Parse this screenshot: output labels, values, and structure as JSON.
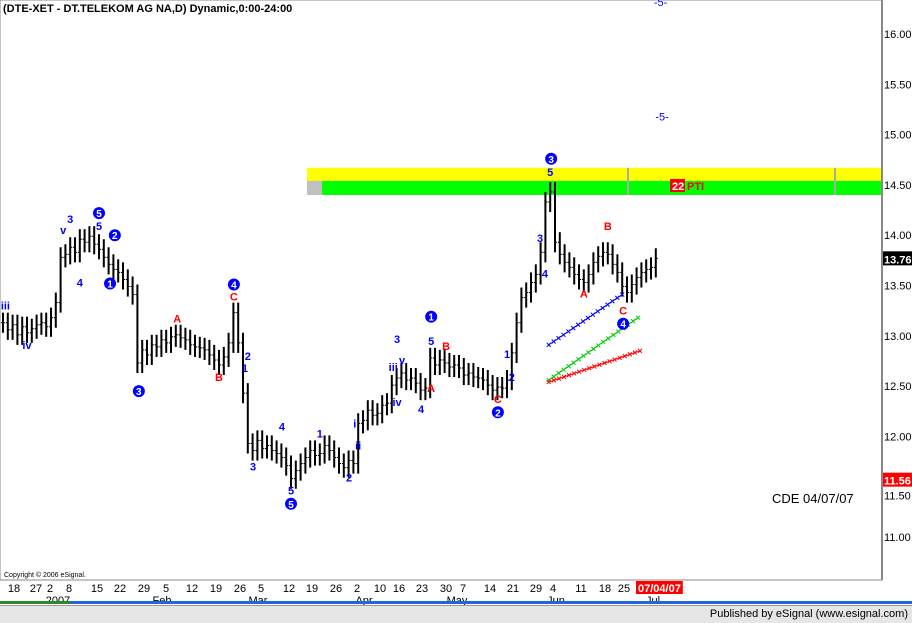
{
  "title": "(DTE-XET - DT.TELEKOM AG NA,D) Dynamic,0:00-24:00",
  "copyright": "Copyright © 2006 eSignal.",
  "footer": "Published by eSignal (www.esignal.com)",
  "annotation_text": "CDE 04/07/07",
  "pti": {
    "value": "22",
    "label": "PTI"
  },
  "colors": {
    "bars": "#000000",
    "wave_blue": "#0000ff",
    "wave_red": "#ff0000",
    "band_yellow": "#ffff00",
    "band_green": "#00ff00",
    "last_price_bg": "#000000",
    "low_price_bg": "#ff0000",
    "date_badge_bg": "#ff0000"
  },
  "chart_data": {
    "type": "ohlc-bar",
    "y_axis": {
      "ticks": [
        "16.00",
        "15.50",
        "15.00",
        "14.50",
        "14.00",
        "13.50",
        "13.00",
        "12.50",
        "12.00",
        "11.50",
        "11.00"
      ],
      "range": [
        10.6,
        16.33
      ],
      "position": "right"
    },
    "x_axis": {
      "day_labels": [
        "18",
        "27",
        "2",
        "8",
        "15",
        "22",
        "29",
        "5",
        "12",
        "19",
        "26",
        "5",
        "12",
        "19",
        "26",
        "2",
        "10",
        "16",
        "23",
        "30",
        "7",
        "14",
        "21",
        "29",
        "4",
        "11",
        "18",
        "25"
      ],
      "month_labels": [
        "2007",
        "Feb",
        "Mar",
        "Apr",
        "May",
        "Jun",
        "Jul"
      ],
      "current_date_badge": "07/04/07"
    },
    "last_price": "13.76",
    "marker_price": "11.56",
    "closes": [
      13.12,
      13.05,
      13.1,
      13.0,
      13.08,
      13.02,
      13.06,
      13.1,
      13.12,
      13.08,
      13.17,
      13.32,
      13.77,
      13.8,
      13.87,
      13.82,
      13.95,
      13.92,
      13.98,
      13.9,
      13.85,
      13.77,
      13.7,
      13.65,
      13.62,
      13.55,
      13.48,
      13.4,
      12.72,
      12.85,
      12.8,
      12.9,
      12.88,
      12.95,
      12.92,
      12.98,
      13.0,
      12.97,
      12.95,
      12.9,
      12.88,
      12.87,
      12.85,
      12.8,
      12.75,
      12.7,
      12.78,
      12.92,
      13.22,
      12.92,
      12.42,
      11.92,
      11.85,
      11.95,
      11.87,
      11.9,
      11.85,
      11.82,
      11.78,
      11.7,
      11.57,
      11.65,
      11.72,
      11.78,
      11.85,
      11.8,
      11.82,
      11.9,
      11.85,
      11.78,
      11.72,
      11.68,
      11.75,
      11.72,
      12.12,
      12.15,
      12.25,
      12.2,
      12.22,
      12.3,
      12.32,
      12.5,
      12.57,
      12.62,
      12.55,
      12.57,
      12.52,
      12.45,
      12.47,
      12.77,
      12.7,
      12.75,
      12.72,
      12.68,
      12.7,
      12.67,
      12.6,
      12.62,
      12.58,
      12.57,
      12.55,
      12.5,
      12.45,
      12.48,
      12.47,
      12.55,
      12.82,
      13.12,
      13.37,
      13.42,
      13.52,
      13.6,
      13.82,
      14.32,
      14.42,
      13.92,
      13.8,
      13.72,
      13.67,
      13.6,
      13.55,
      13.52,
      13.6,
      13.72,
      13.78,
      13.82,
      13.8,
      13.7,
      13.62,
      13.48,
      13.42,
      13.5,
      13.57,
      13.62,
      13.65,
      13.67,
      13.76
    ],
    "bands": [
      {
        "color": "yellow",
        "from": 14.53,
        "to": 14.66
      },
      {
        "color": "green",
        "from": 14.39,
        "to": 14.53
      }
    ],
    "wave_labels": [
      {
        "text": "iii",
        "color": "blue",
        "bar": 0.5,
        "price": 13.29,
        "circled": false
      },
      {
        "text": "iv",
        "color": "blue",
        "bar": 5,
        "price": 12.9,
        "circled": false
      },
      {
        "text": "3",
        "color": "blue",
        "bar": 14,
        "price": 14.15,
        "circled": false
      },
      {
        "text": "v",
        "color": "blue",
        "bar": 14,
        "price": 14.04,
        "circled": false
      },
      {
        "text": "4",
        "color": "blue",
        "bar": 16,
        "price": 13.52,
        "circled": false
      },
      {
        "text": "5",
        "color": "blue",
        "bar": 20,
        "price": 14.08,
        "circled": false
      },
      {
        "text": "5",
        "color": "blue",
        "bar": 20,
        "price": 14.21,
        "circled": true
      },
      {
        "text": "2",
        "color": "blue",
        "bar": 23.3,
        "price": 13.99,
        "circled": true
      },
      {
        "text": "1",
        "color": "blue",
        "bar": 22.3,
        "price": 13.51,
        "circled": true
      },
      {
        "text": "A",
        "color": "red",
        "bar": 36.3,
        "price": 13.16,
        "circled": false
      },
      {
        "text": "B",
        "color": "red",
        "bar": 45,
        "price": 12.58,
        "circled": false
      },
      {
        "text": "3",
        "color": "blue",
        "bar": 28.3,
        "price": 12.44,
        "circled": true
      },
      {
        "text": "4",
        "color": "blue",
        "bar": 48.1,
        "price": 13.5,
        "circled": true
      },
      {
        "text": "C",
        "color": "red",
        "bar": 48.1,
        "price": 13.38,
        "circled": false
      },
      {
        "text": "2",
        "color": "blue",
        "bar": 51,
        "price": 12.79,
        "circled": false
      },
      {
        "text": "1",
        "color": "blue",
        "bar": 50.4,
        "price": 12.67,
        "circled": false
      },
      {
        "text": "3",
        "color": "blue",
        "bar": 52.1,
        "price": 11.69,
        "circled": false
      },
      {
        "text": "4",
        "color": "blue",
        "bar": 58.1,
        "price": 12.09,
        "circled": false
      },
      {
        "text": "1",
        "color": "blue",
        "bar": 66,
        "price": 12.02,
        "circled": false
      },
      {
        "text": "2",
        "color": "blue",
        "bar": 72.1,
        "price": 11.58,
        "circled": false
      },
      {
        "text": "5",
        "color": "blue",
        "bar": 60,
        "price": 11.45,
        "circled": false
      },
      {
        "text": "5",
        "color": "blue",
        "bar": 60,
        "price": 11.32,
        "circled": true
      },
      {
        "text": "i",
        "color": "blue",
        "bar": 73.3,
        "price": 12.12,
        "circled": false
      },
      {
        "text": "ii",
        "color": "blue",
        "bar": 74,
        "price": 11.9,
        "circled": false
      },
      {
        "text": "3",
        "color": "blue",
        "bar": 82.1,
        "price": 12.96,
        "circled": false
      },
      {
        "text": "iii",
        "color": "blue",
        "bar": 81.3,
        "price": 12.68,
        "circled": false
      },
      {
        "text": "v",
        "color": "blue",
        "bar": 82.3,
        "price": 12.75,
        "circled": false
      },
      {
        "text": "iv",
        "color": "blue",
        "bar": 82.1,
        "price": 12.33,
        "circled": false
      },
      {
        "text": "4",
        "color": "blue",
        "bar": 87.1,
        "price": 12.26,
        "circled": false
      },
      {
        "text": "A",
        "color": "red",
        "bar": 89.2,
        "price": 12.47,
        "circled": false
      },
      {
        "text": "5",
        "color": "blue",
        "bar": 89.2,
        "price": 12.94,
        "circled": false
      },
      {
        "text": "1",
        "color": "blue",
        "bar": 89.2,
        "price": 13.18,
        "circled": true
      },
      {
        "text": "B",
        "color": "red",
        "bar": 92.3,
        "price": 12.89,
        "circled": false
      },
      {
        "text": "C",
        "color": "red",
        "bar": 103.1,
        "price": 12.36,
        "circled": false
      },
      {
        "text": "2",
        "color": "blue",
        "bar": 103.1,
        "price": 12.23,
        "circled": true
      },
      {
        "text": "1",
        "color": "blue",
        "bar": 105,
        "price": 12.81,
        "circled": false
      },
      {
        "text": "2",
        "color": "blue",
        "bar": 106,
        "price": 12.58,
        "circled": false
      },
      {
        "text": "3",
        "color": "blue",
        "bar": 111.9,
        "price": 13.96,
        "circled": false
      },
      {
        "text": "4",
        "color": "blue",
        "bar": 112.9,
        "price": 13.61,
        "circled": false
      },
      {
        "text": "5",
        "color": "blue",
        "bar": 114,
        "price": 14.62,
        "circled": false
      },
      {
        "text": "3",
        "color": "blue",
        "bar": 114.2,
        "price": 14.75,
        "circled": true
      },
      {
        "text": "A",
        "color": "red",
        "bar": 121,
        "price": 13.41,
        "circled": false
      },
      {
        "text": "B",
        "color": "red",
        "bar": 126,
        "price": 14.08,
        "circled": false
      },
      {
        "text": "C",
        "color": "red",
        "bar": 129.2,
        "price": 13.24,
        "circled": false
      },
      {
        "text": "4",
        "color": "blue",
        "bar": 129.2,
        "price": 13.11,
        "circled": true
      },
      {
        "text": "-5-",
        "color": "blue",
        "bar": 137.3,
        "price": 15.17,
        "circled": false
      },
      {
        "text": "-5-",
        "color": "blue",
        "bar": 137,
        "price": 16.31,
        "circled": false
      }
    ],
    "projection_lines": [
      {
        "color": "blue",
        "from": {
          "bar": 113.7,
          "price": 12.9
        },
        "to": {
          "bar": 129,
          "price": 13.4
        }
      },
      {
        "color": "green",
        "from": {
          "bar": 113.7,
          "price": 12.55
        },
        "to": {
          "bar": 132.3,
          "price": 13.17
        }
      },
      {
        "color": "red",
        "from": {
          "bar": 113.7,
          "price": 12.53
        },
        "to": {
          "bar": 132.7,
          "price": 12.84
        }
      }
    ]
  }
}
